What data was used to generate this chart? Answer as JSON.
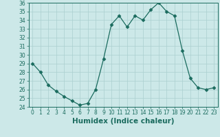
{
  "x": [
    0,
    1,
    2,
    3,
    4,
    5,
    6,
    7,
    8,
    9,
    10,
    11,
    12,
    13,
    14,
    15,
    16,
    17,
    18,
    19,
    20,
    21,
    22,
    23
  ],
  "y": [
    29,
    28,
    26.5,
    25.8,
    25.2,
    24.7,
    24.2,
    24.4,
    26,
    29.5,
    33.5,
    34.5,
    33.2,
    34.5,
    34.0,
    35.2,
    36.0,
    35.0,
    34.5,
    30.5,
    27.3,
    26.2,
    26.0,
    26.2
  ],
  "line_color": "#1a6b5e",
  "marker": "D",
  "marker_size": 2.5,
  "bg_color": "#cce8e8",
  "grid_color": "#aacfcf",
  "xlabel": "Humidex (Indice chaleur)",
  "xlim": [
    -0.5,
    23.5
  ],
  "ylim": [
    24,
    36
  ],
  "yticks": [
    24,
    25,
    26,
    27,
    28,
    29,
    30,
    31,
    32,
    33,
    34,
    35,
    36
  ],
  "xticks": [
    0,
    1,
    2,
    3,
    4,
    5,
    6,
    7,
    8,
    9,
    10,
    11,
    12,
    13,
    14,
    15,
    16,
    17,
    18,
    19,
    20,
    21,
    22,
    23
  ],
  "tick_label_fontsize": 5.5,
  "xlabel_fontsize": 7.5
}
